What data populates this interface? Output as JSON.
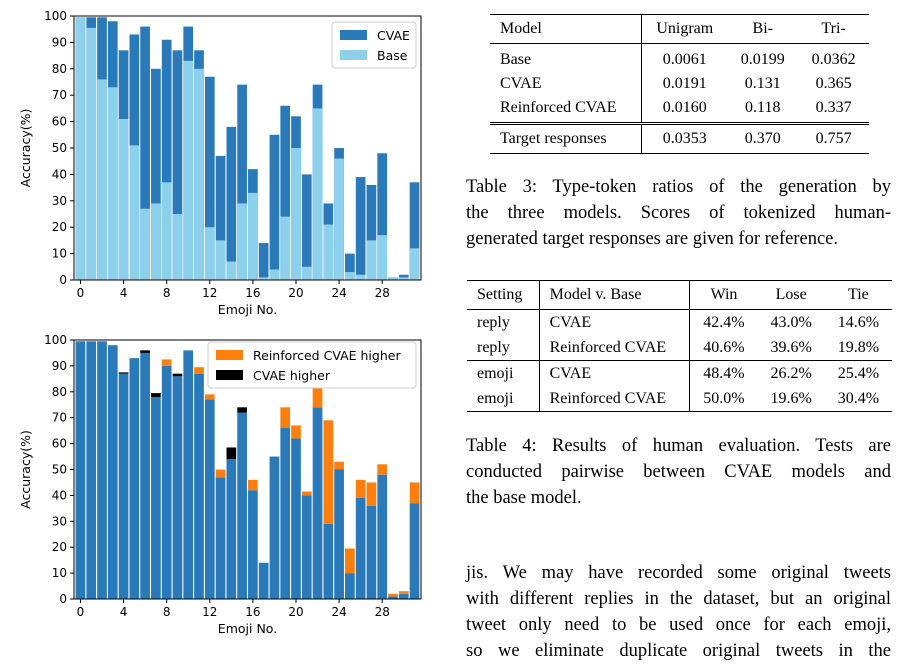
{
  "charts": {
    "chart_data": [
      {
        "type": "bar",
        "xlabel": "Emoji No.",
        "ylabel": "Accuracy(%)",
        "ylim": [
          0,
          100
        ],
        "yticks": [
          0,
          10,
          20,
          30,
          40,
          50,
          60,
          70,
          80,
          90,
          100
        ],
        "xticks": [
          0,
          4,
          8,
          12,
          16,
          20,
          24,
          28
        ],
        "legend_position": "top-right",
        "grid": false,
        "series": [
          {
            "name": "CVAE",
            "color": "#2a7ab9",
            "values": [
              99.5,
              99.5,
              99.5,
              98,
              87,
              93,
              96,
              80,
              91,
              87,
              96,
              87,
              77,
              47,
              58,
              74,
              42,
              14,
              55,
              66,
              62,
              40,
              74,
              29,
              50,
              10,
              39,
              36,
              48,
              1,
              2,
              37
            ]
          },
          {
            "name": "Base",
            "color": "#8dd0ec",
            "values": [
              99.5,
              95.5,
              76,
              73,
              61,
              51,
              27,
              29,
              37,
              25,
              83,
              80,
              20,
              15,
              7,
              29,
              33,
              1,
              4,
              24,
              50,
              5,
              65,
              21,
              46,
              3,
              2,
              15,
              17,
              1,
              1,
              12
            ]
          }
        ]
      },
      {
        "type": "bar",
        "stacked": true,
        "xlabel": "Emoji No.",
        "ylabel": "Accuracy(%)",
        "ylim": [
          0,
          100
        ],
        "yticks": [
          0,
          10,
          20,
          30,
          40,
          50,
          60,
          70,
          80,
          90,
          100
        ],
        "xticks": [
          0,
          4,
          8,
          12,
          16,
          20,
          24,
          28
        ],
        "legend_position": "top-right",
        "grid": false,
        "base_values": [
          99.5,
          99.5,
          99.5,
          98,
          87,
          93,
          95,
          78,
          90,
          86,
          96,
          87,
          77,
          47,
          54,
          72,
          42,
          14,
          55,
          66,
          62,
          40,
          74,
          29,
          50,
          10,
          39,
          36,
          48,
          1,
          2,
          37
        ],
        "series": [
          {
            "name": "Reinforced CVAE higher",
            "color": "#ff7f0e",
            "values": [
              0,
              0,
              0,
              0,
              0,
              0,
              0,
              0,
              2.5,
              0,
              0,
              2.5,
              2,
              3,
              0,
              0,
              4,
              0,
              0,
              8,
              5,
              1.5,
              8,
              40,
              3,
              9.5,
              7,
              9,
              4,
              1,
              1,
              8
            ]
          },
          {
            "name": "CVAE higher",
            "color": "#000000",
            "values": [
              0,
              0,
              0,
              0,
              0.5,
              0,
              1,
              1.5,
              0,
              1,
              0,
              0,
              0,
              0,
              4.5,
              2,
              0,
              0,
              0,
              0,
              0,
              0,
              0,
              0,
              0,
              0,
              0,
              0,
              0,
              0,
              0,
              0
            ]
          }
        ]
      }
    ]
  },
  "table3": {
    "headers": [
      "Model",
      "Unigram",
      "Bi-",
      "Tri-"
    ],
    "rows": [
      [
        "Base",
        "0.0061",
        "0.0199",
        "0.0362"
      ],
      [
        "CVAE",
        "0.0191",
        "0.131",
        "0.365"
      ],
      [
        "Reinforced CVAE",
        "0.0160",
        "0.118",
        "0.337"
      ]
    ],
    "target_row": [
      "Target responses",
      "0.0353",
      "0.370",
      "0.757"
    ],
    "caption_lines": [
      "Table 3: Type-token ratios of the generation by",
      "the three models.  Scores of tokenized human-",
      "generated target responses are given for reference."
    ]
  },
  "table4": {
    "headers": [
      "Setting",
      "Model v. Base",
      "Win",
      "Lose",
      "Tie"
    ],
    "rows": [
      [
        "reply",
        "CVAE",
        "42.4%",
        "43.0%",
        "14.6%"
      ],
      [
        "reply",
        "Reinforced CVAE",
        "40.6%",
        "39.6%",
        "19.8%"
      ],
      [
        "emoji",
        "CVAE",
        "48.4%",
        "26.2%",
        "25.4%"
      ],
      [
        "emoji",
        "Reinforced CVAE",
        "50.0%",
        "19.6%",
        "30.4%"
      ]
    ],
    "caption_lines": [
      "Table 4: Results of human evaluation.  Tests are",
      "conducted pairwise between CVAE models and",
      "the base model."
    ]
  },
  "body_lines": [
    "jis.  We may have recorded some original tweets",
    "with different replies in the dataset, but an original",
    "tweet only need to be used once for each emoji,",
    "so we eliminate duplicate original tweets in the"
  ]
}
